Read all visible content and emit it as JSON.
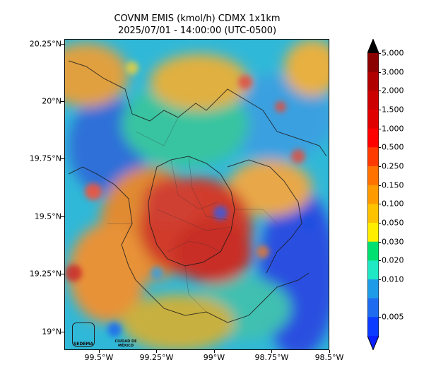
{
  "title": {
    "line1": "COVNM EMIS (kmol/h) CDMX 1x1km",
    "line2": "2025/07/01 - 14:00:00 (UTC-0500)"
  },
  "map": {
    "lat_range": [
      18.92,
      20.27
    ],
    "lon_range": [
      99.65,
      98.5
    ],
    "y_ticks": [
      {
        "value": 20.25,
        "label": "20.25°N"
      },
      {
        "value": 20.0,
        "label": "20°N"
      },
      {
        "value": 19.75,
        "label": "19.75°N"
      },
      {
        "value": 19.5,
        "label": "19.5°N"
      },
      {
        "value": 19.25,
        "label": "19.25°N"
      },
      {
        "value": 19.0,
        "label": "19°N"
      }
    ],
    "x_ticks": [
      {
        "value": 99.5,
        "label": "99.5°W"
      },
      {
        "value": 99.25,
        "label": "99.25°W"
      },
      {
        "value": 99.0,
        "label": "99°W"
      },
      {
        "value": 98.75,
        "label": "98.75°W"
      },
      {
        "value": 98.5,
        "label": "98.5°W"
      }
    ],
    "logos": {
      "sedema": "SEDEMA",
      "city": "CIUDAD DE MÉXICO"
    }
  },
  "colorbar": {
    "labels": [
      "5.000",
      "3.000",
      "2.000",
      "1.500",
      "1.000",
      "0.500",
      "0.250",
      "0.150",
      "0.100",
      "0.050",
      "0.030",
      "0.020",
      "0.010",
      "0.005"
    ],
    "colors_top_to_bottom": [
      "#8b0000",
      "#b00000",
      "#cc0000",
      "#e10000",
      "#ff0000",
      "#ff3a00",
      "#ff7200",
      "#ff9b00",
      "#ffc200",
      "#ffee00",
      "#00e070",
      "#1fe8c4",
      "#1e9be8",
      "#1f6bf0",
      "#0a3bff"
    ],
    "extend": "both"
  }
}
